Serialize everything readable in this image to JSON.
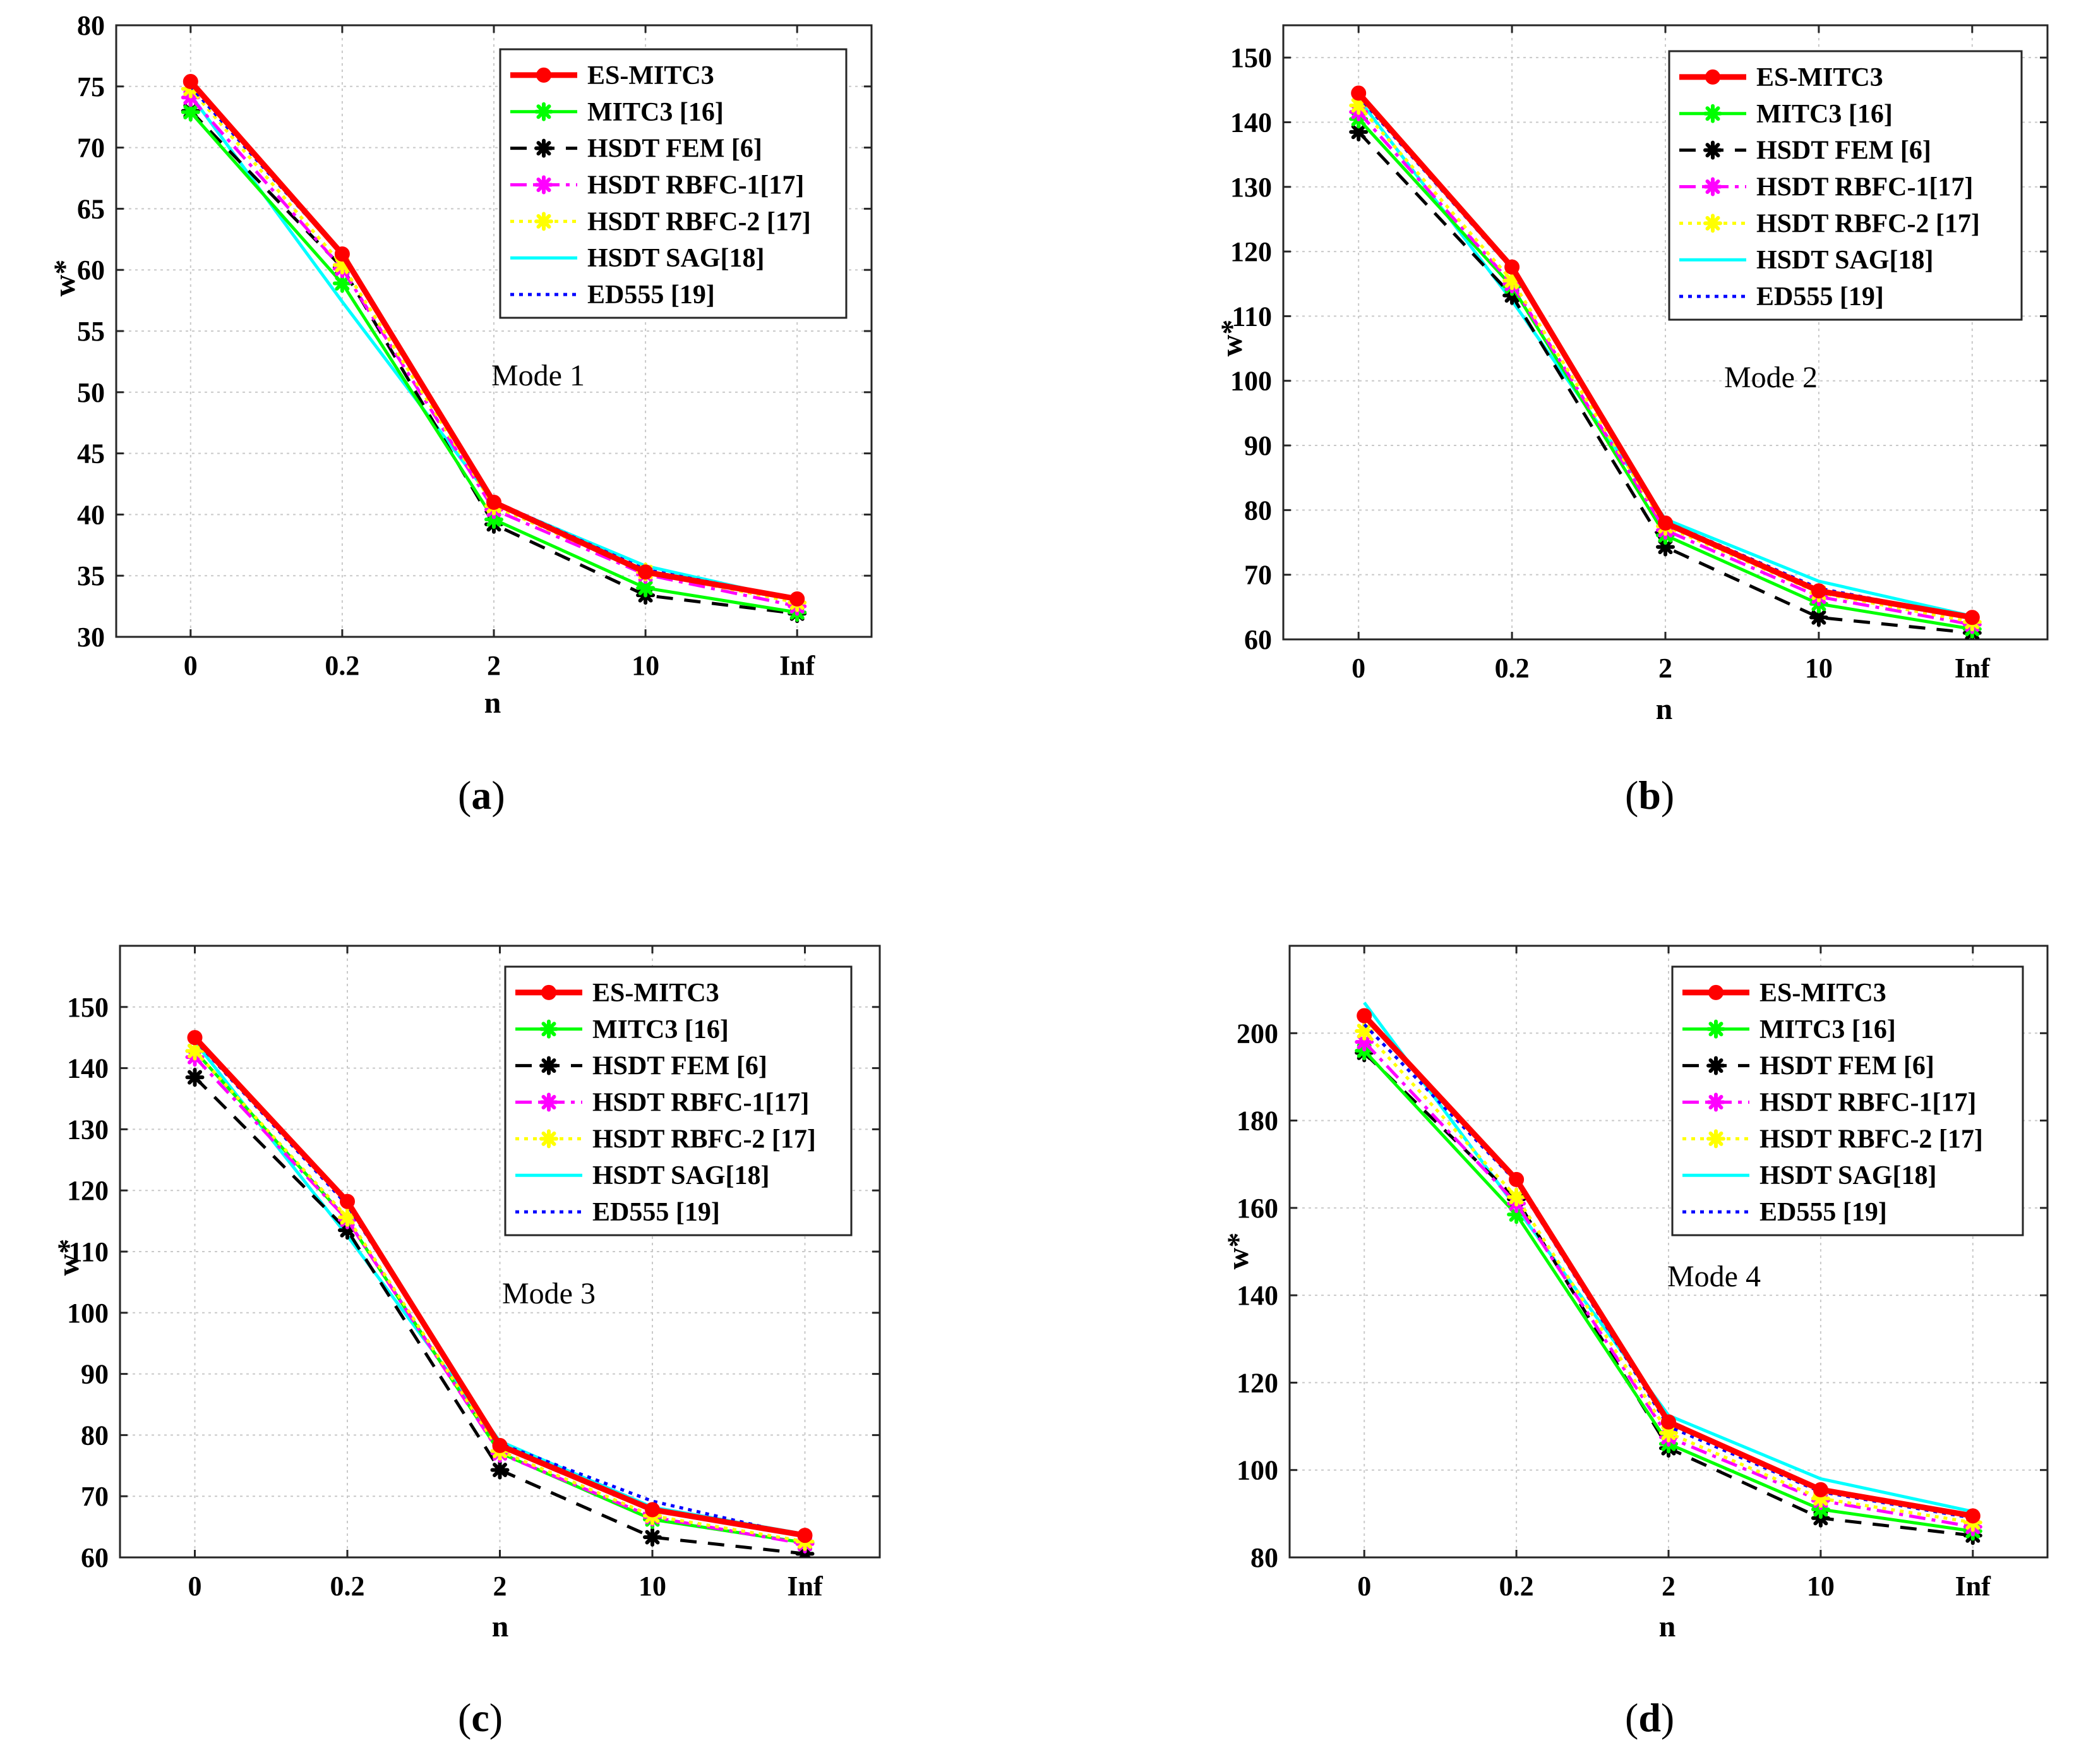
{
  "legend_entries": [
    {
      "label": "ES-MITC3",
      "color": "#ff0000",
      "dash": "",
      "marker": "circle",
      "width": 9
    },
    {
      "label": "MITC3 [16]",
      "color": "#00ff00",
      "dash": "",
      "marker": "star",
      "width": 5
    },
    {
      "label": "HSDT FEM [6]",
      "color": "#000000",
      "dash": "26,18",
      "marker": "star",
      "width": 5
    },
    {
      "label": "HSDT RBFC-1[17]",
      "color": "#ff00ff",
      "dash": "26,10,6,10",
      "marker": "star",
      "width": 5
    },
    {
      "label": "HSDT RBFC-2 [17]",
      "color": "#ffff00",
      "dash": "6,8",
      "marker": "star",
      "width": 5
    },
    {
      "label": "HSDT SAG[18]",
      "color": "#00ffff",
      "dash": "",
      "marker": "none",
      "width": 5
    },
    {
      "label": "ED555 [19]",
      "color": "#0000ff",
      "dash": "6,8",
      "marker": "none",
      "width": 5
    }
  ],
  "chart_data": [
    {
      "type": "line",
      "caption": "a",
      "annotation": "Mode 1",
      "xlabel": "n",
      "ylabel": "w*",
      "categories": [
        "0",
        "0.2",
        "2",
        "10",
        "Inf"
      ],
      "ylim": [
        30,
        80
      ],
      "yticks": [
        30,
        35,
        40,
        45,
        50,
        55,
        60,
        65,
        70,
        75,
        80
      ],
      "series": [
        {
          "name": "ES-MITC3",
          "values": [
            75.4,
            61.3,
            41.0,
            35.3,
            33.1
          ]
        },
        {
          "name": "MITC3 [16]",
          "values": [
            72.9,
            58.9,
            39.6,
            34.0,
            32.0
          ]
        },
        {
          "name": "HSDT FEM [6]",
          "values": [
            73.0,
            60.2,
            39.2,
            33.4,
            31.9
          ]
        },
        {
          "name": "HSDT RBFC-1[17]",
          "values": [
            74.1,
            60.1,
            40.4,
            35.1,
            32.5
          ]
        },
        {
          "name": "HSDT RBFC-2 [17]",
          "values": [
            74.8,
            60.4,
            40.7,
            35.3,
            32.8
          ]
        },
        {
          "name": "HSDT SAG[18]",
          "values": [
            74.3,
            57.4,
            41.0,
            35.8,
            33.0
          ]
        },
        {
          "name": "ED555 [19]",
          "values": [
            75.0,
            61.2,
            41.1,
            35.5,
            33.1
          ]
        }
      ]
    },
    {
      "type": "line",
      "caption": "b",
      "annotation": "Mode 2",
      "xlabel": "n",
      "ylabel": "w*",
      "categories": [
        "0",
        "0.2",
        "2",
        "10",
        "Inf"
      ],
      "ylim": [
        60,
        155
      ],
      "yticks": [
        60,
        70,
        80,
        90,
        100,
        110,
        120,
        130,
        140,
        150
      ],
      "series": [
        {
          "name": "ES-MITC3",
          "values": [
            144.5,
            117.6,
            78.0,
            67.5,
            63.4
          ]
        },
        {
          "name": "MITC3 [16]",
          "values": [
            140.5,
            114.6,
            76.1,
            65.5,
            61.6
          ]
        },
        {
          "name": "HSDT FEM [6]",
          "values": [
            138.5,
            113.2,
            74.3,
            63.4,
            61.0
          ]
        },
        {
          "name": "HSDT RBFC-1[17]",
          "values": [
            141.6,
            115.0,
            76.9,
            66.6,
            62.3
          ]
        },
        {
          "name": "HSDT RBFC-2 [17]",
          "values": [
            142.6,
            115.5,
            77.5,
            67.2,
            62.7
          ]
        },
        {
          "name": "HSDT SAG[18]",
          "values": [
            143.6,
            112.4,
            78.6,
            69.0,
            63.6
          ]
        },
        {
          "name": "ED555 [19]",
          "values": [
            144.0,
            117.3,
            78.2,
            67.9,
            63.3
          ]
        }
      ]
    },
    {
      "type": "line",
      "caption": "c",
      "annotation": "Mode 3",
      "xlabel": "n",
      "ylabel": "w*",
      "categories": [
        "0",
        "0.2",
        "2",
        "10",
        "Inf"
      ],
      "ylim": [
        60,
        160
      ],
      "yticks": [
        60,
        70,
        80,
        90,
        100,
        110,
        120,
        130,
        140,
        150
      ],
      "series": [
        {
          "name": "ES-MITC3",
          "values": [
            145.0,
            118.2,
            78.3,
            67.8,
            63.6
          ]
        },
        {
          "name": "MITC3 [16]",
          "values": [
            142.8,
            115.2,
            77.1,
            66.2,
            62.4
          ]
        },
        {
          "name": "HSDT FEM [6]",
          "values": [
            138.5,
            113.5,
            74.3,
            63.3,
            60.6
          ]
        },
        {
          "name": "HSDT RBFC-1[17]",
          "values": [
            141.8,
            115.2,
            77.0,
            66.6,
            62.2
          ]
        },
        {
          "name": "HSDT RBFC-2 [17]",
          "values": [
            142.8,
            115.6,
            77.4,
            66.8,
            62.6
          ]
        },
        {
          "name": "HSDT SAG[18]",
          "values": [
            144.3,
            112.6,
            79.0,
            68.2,
            63.8
          ]
        },
        {
          "name": "ED555 [19]",
          "values": [
            144.6,
            117.6,
            78.6,
            69.2,
            63.4
          ]
        }
      ]
    },
    {
      "type": "line",
      "caption": "d",
      "annotation": "Mode 4",
      "xlabel": "n",
      "ylabel": "w*",
      "categories": [
        "0",
        "0.2",
        "2",
        "10",
        "Inf"
      ],
      "ylim": [
        80,
        220
      ],
      "yticks": [
        80,
        100,
        120,
        140,
        160,
        180,
        200
      ],
      "series": [
        {
          "name": "ES-MITC3",
          "values": [
            204.0,
            166.5,
            111.0,
            95.5,
            89.5
          ]
        },
        {
          "name": "MITC3 [16]",
          "values": [
            196.0,
            158.5,
            106.0,
            91.0,
            86.0
          ]
        },
        {
          "name": "HSDT FEM [6]",
          "values": [
            195.5,
            162.0,
            105.0,
            89.0,
            85.0
          ]
        },
        {
          "name": "HSDT RBFC-1[17]",
          "values": [
            198.0,
            161.0,
            107.5,
            93.0,
            87.0
          ]
        },
        {
          "name": "HSDT RBFC-2 [17]",
          "values": [
            200.5,
            162.5,
            108.5,
            93.5,
            88.0
          ]
        },
        {
          "name": "HSDT SAG[18]",
          "values": [
            207.0,
            160.0,
            112.5,
            98.0,
            90.5
          ]
        },
        {
          "name": "ED555 [19]",
          "values": [
            202.0,
            166.0,
            110.0,
            95.0,
            89.0
          ]
        }
      ]
    }
  ]
}
